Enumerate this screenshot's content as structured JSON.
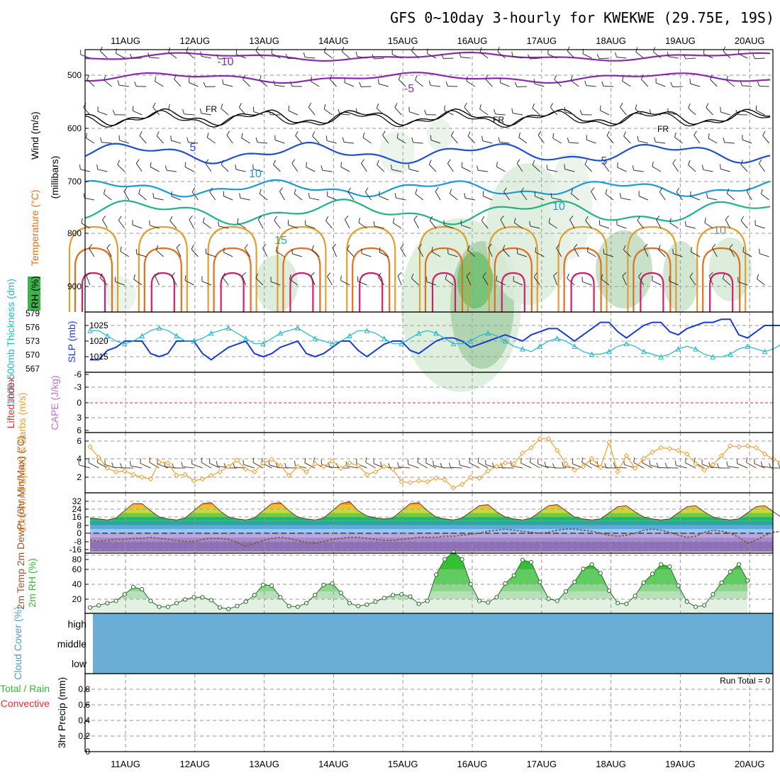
{
  "title": "GFS 0~10day 3-hourly for KWEKWE (29.75E, 19S)",
  "dates": [
    "11AUG",
    "12AUG",
    "13AUG",
    "14AUG",
    "15AUG",
    "16AUG",
    "17AUG",
    "18AUG",
    "19AUG",
    "20AUG"
  ],
  "run_total": "Run Total = 0",
  "colors": {
    "rh_green": "#3cb44a",
    "temp_purple": "#8a2bb0",
    "temp_blue": "#2050d0",
    "temp_lightblue": "#1e9ad6",
    "temp_teal": "#20b38a",
    "temp_orange": "#e0a030",
    "temp_darkorange": "#e07020",
    "temp_magenta": "#d0206a",
    "slp": "#1b3ccf",
    "thickness": "#22b8c8",
    "wind10": "#f0a030",
    "tmax": "#e8580a",
    "dewpt": "#8a5a3a",
    "rh2m": "#2ec02e",
    "cloud": "#6aaed6"
  },
  "chart_data": [
    {
      "type": "line",
      "panel": "upper-air",
      "ylabels": {
        "y1": "RH (%)",
        "y2": "Temperature (°C)",
        "y3": "Wind (m/s)",
        "y4": "(millibars)"
      },
      "yticks": [
        "500",
        "600",
        "700",
        "800",
        "900"
      ],
      "contour_labels": [
        "-10",
        "-5",
        "FR",
        "FR",
        "FR",
        "5",
        "5",
        "10",
        "10",
        "15",
        "10"
      ],
      "levels_mb": {
        "-10": 465,
        "-5": 505,
        "FR": 580,
        "5": 648,
        "10": 715,
        "15": 760
      }
    },
    {
      "type": "line",
      "panel": "slp-thickness",
      "ylabel_left": "1000-500mb Thickness (dm)",
      "ylabel_right": "SLP (mb)",
      "thickness_ticks": [
        "579",
        "576",
        "573",
        "570",
        "567"
      ],
      "slp_ticks": [
        "1025",
        "1020",
        "1015"
      ],
      "slp": [
        1014,
        1014,
        1017,
        1018,
        1020,
        1020,
        1020,
        1016,
        1015,
        1016,
        1020,
        1020,
        1020,
        1016,
        1014,
        1016,
        1018,
        1019,
        1020,
        1016,
        1015,
        1016,
        1018,
        1019,
        1020,
        1016,
        1015,
        1016,
        1018,
        1020,
        1020,
        1017,
        1015,
        1017,
        1019,
        1020,
        1020,
        1017,
        1016,
        1018,
        1020,
        1021,
        1021,
        1020,
        1018,
        1019,
        1020,
        1021,
        1022,
        1021,
        1020,
        1022,
        1023,
        1024,
        1024,
        1022,
        1020,
        1022,
        1024,
        1026,
        1026,
        1023,
        1021,
        1023,
        1025,
        1026,
        1026,
        1023,
        1022,
        1024,
        1025,
        1026,
        1026,
        1027,
        1027,
        1022,
        1021,
        1023,
        1025,
        1025,
        1025,
        1025
      ],
      "thickness": [
        577,
        577,
        575,
        573,
        572,
        573,
        575,
        577,
        578,
        577,
        575,
        573,
        573,
        574,
        576,
        577,
        578,
        576,
        574,
        572,
        572,
        574,
        576,
        577,
        578,
        576,
        574,
        573,
        572,
        573,
        575,
        577,
        577,
        576,
        574,
        572,
        572,
        574,
        576,
        577,
        576,
        574,
        572,
        572,
        573,
        575,
        576,
        575,
        573,
        571,
        570,
        569,
        571,
        573,
        574,
        573,
        571,
        569,
        568,
        568,
        569,
        571,
        572,
        571,
        569,
        568,
        567,
        568,
        570,
        571,
        570,
        568,
        567,
        567,
        568,
        570,
        571,
        570,
        569,
        570,
        572,
        573
      ]
    },
    {
      "type": "line",
      "panel": "instability",
      "ylabel_left": "Lifted Index",
      "ylabel_right": "CAPE (J/kg)",
      "yticks": [
        "-6",
        "-3",
        "0",
        "3",
        "6"
      ],
      "lifted_index_zero": 0
    },
    {
      "type": "line",
      "panel": "wind10m",
      "ylabel": "10m Wind Speed & Barbs (m/s)",
      "yticks": [
        "6",
        "4",
        "2"
      ],
      "values": [
        5.4,
        4.2,
        3.0,
        2.6,
        2.7,
        2.3,
        2.0,
        1.8,
        3.7,
        3.6,
        2.2,
        2.3,
        1.6,
        1.8,
        2.2,
        2.6,
        3.2,
        3.9,
        2.9,
        2.6,
        3.6,
        4.0,
        3.3,
        2.2,
        3.2,
        2.6,
        3.5,
        3.2,
        3.8,
        3.0,
        3.6,
        3.3,
        2.3,
        2.6,
        3.2,
        2.9,
        1.5,
        1.4,
        1.6,
        1.5,
        1.9,
        1.7,
        0.8,
        1.2,
        2.0,
        1.9,
        2.7,
        3.2,
        3.6,
        3.5,
        4.7,
        5.3,
        6.3,
        6.3,
        5.0,
        3.5,
        2.8,
        3.2,
        4.1,
        3.1,
        5.9,
        2.6,
        4.4,
        3.0,
        4.1,
        4.8,
        5.3,
        5.2,
        5.0,
        4.6,
        3.5,
        2.8,
        3.4,
        4.4,
        5.5,
        5.4,
        5.5,
        5.3,
        4.6,
        4.0,
        3.6,
        3.0
      ]
    },
    {
      "type": "area",
      "panel": "temp2m",
      "ylabel": "2m Temp 2m DewPt (6hr Min/Max) (°C)",
      "yticks": [
        "32",
        "24",
        "16",
        "8",
        "0",
        "-8",
        "-16"
      ],
      "temp": [
        15,
        14,
        13,
        15,
        22,
        29,
        29,
        22,
        16,
        14,
        13,
        15,
        22,
        29,
        30,
        22,
        16,
        14,
        13,
        15,
        22,
        29,
        30,
        22,
        16,
        14,
        13,
        15,
        22,
        29,
        31,
        22,
        17,
        15,
        14,
        15,
        22,
        29,
        30,
        22,
        16,
        14,
        13,
        15,
        21,
        27,
        28,
        21,
        16,
        14,
        13,
        15,
        21,
        27,
        28,
        22,
        16,
        14,
        13,
        14,
        20,
        26,
        27,
        21,
        16,
        14,
        13,
        14,
        20,
        26,
        27,
        21,
        16,
        14,
        13,
        14,
        20,
        26,
        27,
        21,
        15,
        14
      ],
      "dewpt": [
        -7,
        -8,
        -7,
        -6,
        -6,
        -5,
        -5,
        -4,
        -5,
        -6,
        -7,
        -8,
        -8,
        -6,
        -5,
        -5,
        -6,
        -9,
        -13,
        -10,
        -7,
        -5,
        -4,
        -5,
        -7,
        -9,
        -10,
        -8,
        -6,
        -5,
        -4,
        -4,
        -5,
        -6,
        -7,
        -7,
        -6,
        -5,
        -4,
        -4,
        -4,
        -3,
        -3,
        -2,
        -1,
        0,
        2,
        3,
        4,
        3,
        2,
        1,
        0,
        1,
        3,
        4,
        4,
        3,
        2,
        0,
        -2,
        -3,
        -2,
        0,
        3,
        4,
        3,
        1,
        -2,
        -4,
        -3,
        1,
        3,
        2,
        0,
        -4,
        -10,
        -7,
        -2,
        1,
        2,
        2
      ]
    },
    {
      "type": "area",
      "panel": "rh2m",
      "ylabel": "2m RH (%)",
      "yticks": [
        "80",
        "60",
        "40",
        "20"
      ],
      "values": [
        8,
        11,
        14,
        17,
        26,
        36,
        33,
        17,
        9,
        9,
        14,
        19,
        22,
        22,
        18,
        8,
        6,
        10,
        16,
        25,
        39,
        38,
        22,
        10,
        9,
        14,
        25,
        39,
        41,
        28,
        14,
        10,
        12,
        16,
        21,
        25,
        26,
        23,
        13,
        17,
        53,
        74,
        84,
        74,
        40,
        17,
        15,
        22,
        41,
        52,
        73,
        70,
        43,
        20,
        17,
        30,
        43,
        61,
        67,
        55,
        31,
        14,
        13,
        24,
        42,
        54,
        67,
        64,
        38,
        16,
        9,
        11,
        26,
        42,
        57,
        67,
        45
      ]
    },
    {
      "type": "heatmap",
      "panel": "cloud",
      "ylabel": "Cloud Cover (%)",
      "rows": [
        "high",
        "middle",
        "low"
      ]
    },
    {
      "type": "bar",
      "panel": "precip",
      "ylabel_left": "Total / Rain",
      "ylabel_left2": "Convective",
      "ylabel": "3hr Precip (mm)",
      "yticks": [
        "0.8",
        "0.6",
        "0.4",
        "0.2",
        "0"
      ],
      "values": [],
      "run_total": 0
    }
  ]
}
